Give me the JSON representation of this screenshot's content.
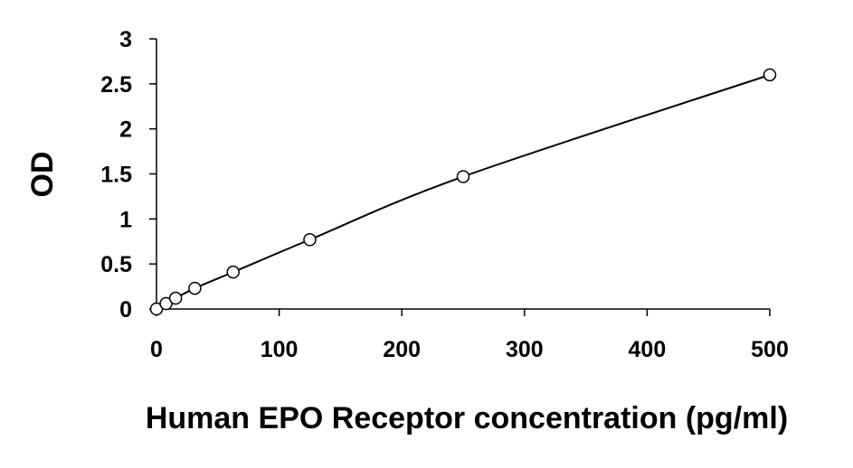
{
  "chart_data": {
    "type": "scatter",
    "title": "",
    "xlabel": "Human EPO Receptor concentration (pg/ml)",
    "ylabel": "OD",
    "xlim": [
      0,
      500
    ],
    "ylim": [
      0,
      3
    ],
    "x_ticks": [
      "0",
      "100",
      "200",
      "300",
      "400",
      "500"
    ],
    "y_ticks": [
      "0",
      "0.5",
      "1",
      "1.5",
      "2",
      "2.5",
      "3"
    ],
    "grid": false,
    "legend": "none",
    "series": [
      {
        "marker": "open-circle",
        "trendline": "smooth-curve",
        "points": [
          {
            "x": 0,
            "y": 0.0
          },
          {
            "x": 7.8,
            "y": 0.06
          },
          {
            "x": 15.6,
            "y": 0.12
          },
          {
            "x": 31.25,
            "y": 0.23
          },
          {
            "x": 62.5,
            "y": 0.41
          },
          {
            "x": 125,
            "y": 0.77
          },
          {
            "x": 250,
            "y": 1.47
          },
          {
            "x": 500,
            "y": 2.6
          }
        ]
      }
    ],
    "colors": {
      "axis": "#000000",
      "line": "#000000",
      "marker_stroke": "#000000",
      "marker_fill": "#ffffff"
    }
  }
}
